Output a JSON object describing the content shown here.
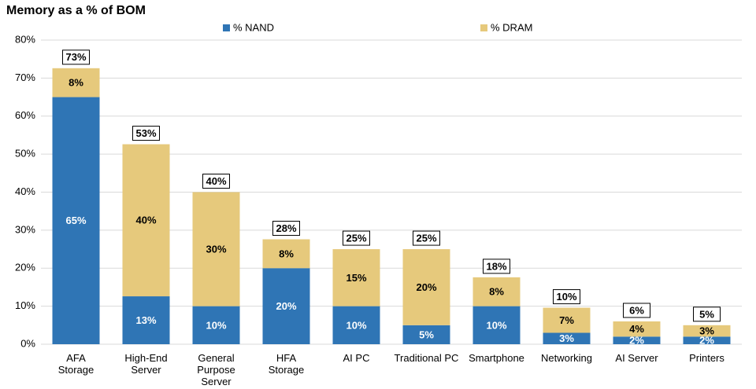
{
  "chart_data": {
    "type": "stacked_bar",
    "title": "Memory as a % of BOM",
    "categories": [
      "AFA\nStorage",
      "High-End\nServer",
      "General\nPurpose\nServer",
      "HFA\nStorage",
      "AI PC",
      "Traditional PC",
      "Smartphone",
      "Networking",
      "AI Server",
      "Printers"
    ],
    "series": [
      {
        "name": "% NAND",
        "color": "#2f75b5",
        "label_color": "#ffffff",
        "values": [
          65,
          12.6,
          10,
          20,
          10,
          5,
          10,
          3,
          2,
          2
        ],
        "value_labels": [
          "65%",
          "13%",
          "10%",
          "20%",
          "10%",
          "5%",
          "10%",
          "3%",
          "2%",
          "2%"
        ]
      },
      {
        "name": "% DRAM",
        "color": "#e6c97c",
        "label_color": "#000000",
        "values": [
          7.6,
          40,
          30,
          7.6,
          15,
          20,
          7.6,
          6.6,
          4,
          3
        ],
        "value_labels": [
          "8%",
          "40%",
          "30%",
          "8%",
          "15%",
          "20%",
          "8%",
          "7%",
          "4%",
          "3%"
        ]
      }
    ],
    "totals": [
      72.6,
      52.6,
      40,
      27.6,
      25,
      25,
      17.6,
      9.6,
      6,
      5
    ],
    "total_labels": [
      "73%",
      "53%",
      "40%",
      "28%",
      "25%",
      "25%",
      "18%",
      "10%",
      "6%",
      "5%"
    ],
    "ylim": [
      0,
      80
    ],
    "yticks": [
      {
        "value": 0,
        "label": "0%"
      },
      {
        "value": 10,
        "label": "10%"
      },
      {
        "value": 20,
        "label": "20%"
      },
      {
        "value": 30,
        "label": "30%"
      },
      {
        "value": 40,
        "label": "40%"
      },
      {
        "value": 50,
        "label": "50%"
      },
      {
        "value": 60,
        "label": "60%"
      },
      {
        "value": 70,
        "label": "70%"
      },
      {
        "value": 80,
        "label": "80%"
      }
    ],
    "grid": true,
    "legend": "top"
  }
}
